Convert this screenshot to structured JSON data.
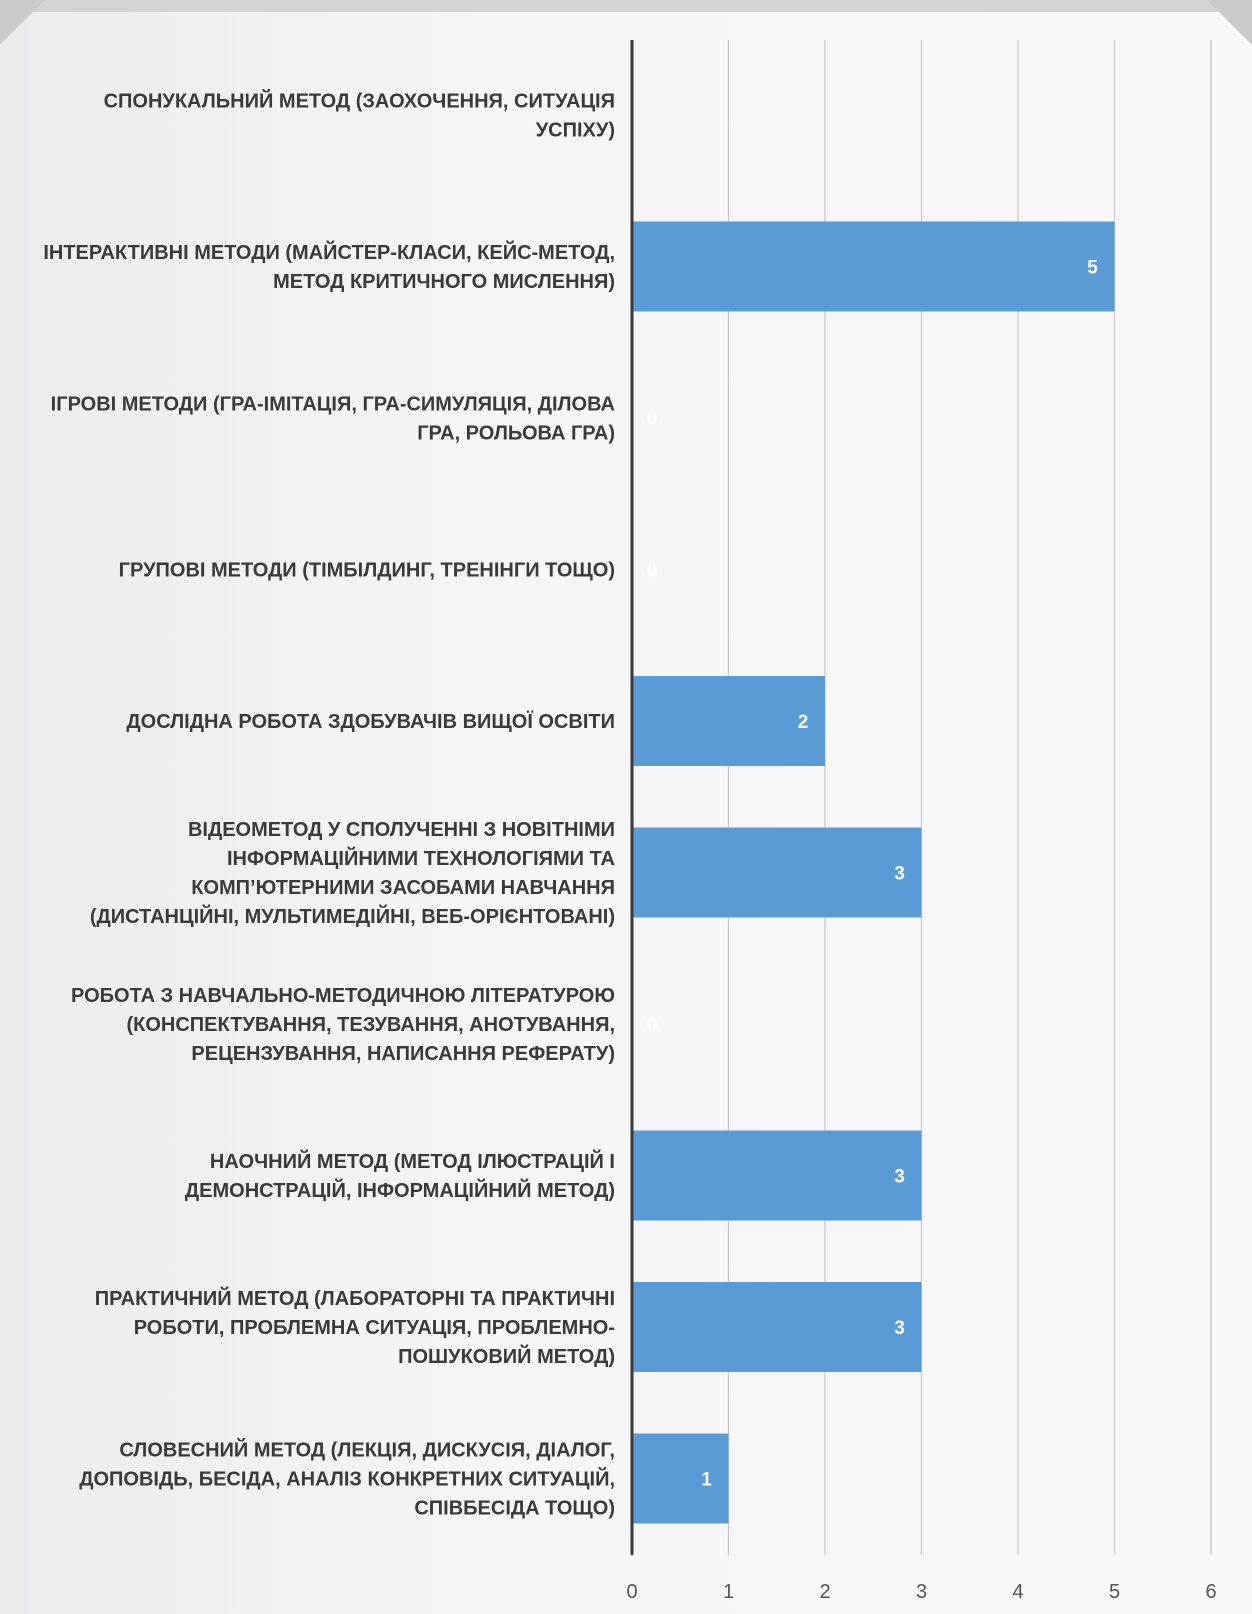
{
  "chart_data": {
    "type": "bar",
    "orientation": "horizontal",
    "categories": [
      [
        "СПОНУКАЛЬНИЙ МЕТОД (ЗАОХОЧЕННЯ, СИТУАЦІЯ",
        "УСПІХУ)"
      ],
      [
        "ІНТЕРАКТИВНІ МЕТОДИ (МАЙСТЕР-КЛАСИ, КЕЙС-МЕТОД,",
        "МЕТОД КРИТИЧНОГО МИСЛЕННЯ)"
      ],
      [
        "ІГРОВІ МЕТОДИ (ГРА-ІМІТАЦІЯ, ГРА-СИМУЛЯЦІЯ, ДІЛОВА",
        "ГРА, РОЛЬОВА ГРА)"
      ],
      [
        "ГРУПОВІ МЕТОДИ (ТІМБІЛДИНГ, ТРЕНІНГИ ТОЩО)"
      ],
      [
        "ДОСЛІДНА РОБОТА ЗДОБУВАЧІВ ВИЩОЇ ОСВІТИ"
      ],
      [
        "ВІДЕОМЕТОД У СПОЛУЧЕННІ З НОВІТНІМИ",
        "ІНФОРМАЦІЙНИМИ ТЕХНОЛОГІЯМИ ТА",
        "КОМП’ЮТЕРНИМИ ЗАСОБАМИ НАВЧАННЯ",
        "(ДИСТАНЦІЙНІ, МУЛЬТИМЕДІЙНІ, ВЕБ-ОРІЄНТОВАНІ)"
      ],
      [
        "РОБОТА З НАВЧАЛЬНО-МЕТОДИЧНОЮ ЛІТЕРАТУРОЮ",
        "(КОНСПЕКТУВАННЯ, ТЕЗУВАННЯ, АНОТУВАННЯ,",
        "РЕЦЕНЗУВАННЯ, НАПИСАННЯ РЕФЕРАТУ)"
      ],
      [
        "НАОЧНИЙ МЕТОД (МЕТОД ІЛЮСТРАЦІЙ І",
        "ДЕМОНСТРАЦІЙ, ІНФОРМАЦІЙНИЙ МЕТОД)"
      ],
      [
        "ПРАКТИЧНИЙ МЕТОД (ЛАБОРАТОРНІ ТА ПРАКТИЧНІ",
        "РОБОТИ, ПРОБЛЕМНА СИТУАЦІЯ, ПРОБЛЕМНО-",
        "ПОШУКОВИЙ МЕТОД)"
      ],
      [
        "СЛОВЕСНИЙ МЕТОД (ЛЕКЦІЯ, ДИСКУСІЯ, ДІАЛОГ,",
        "ДОПОВІДЬ, БЕСІДА, АНАЛІЗ КОНКРЕТНИХ СИТУАЦІЙ,",
        "СПІВБЕСІДА ТОЩО)"
      ]
    ],
    "values": [
      null,
      5,
      0,
      0,
      2,
      3,
      0,
      3,
      3,
      1
    ],
    "data_labels": [
      "",
      "5",
      "0",
      "0",
      "2",
      "3",
      "0",
      "3",
      "3",
      "1"
    ],
    "xlim": [
      0,
      6
    ],
    "xticks": [
      "0",
      "1",
      "2",
      "3",
      "4",
      "5",
      "6"
    ],
    "grid": true,
    "bar_color": "#5b9bd5",
    "title": "",
    "xlabel": "",
    "ylabel": ""
  }
}
